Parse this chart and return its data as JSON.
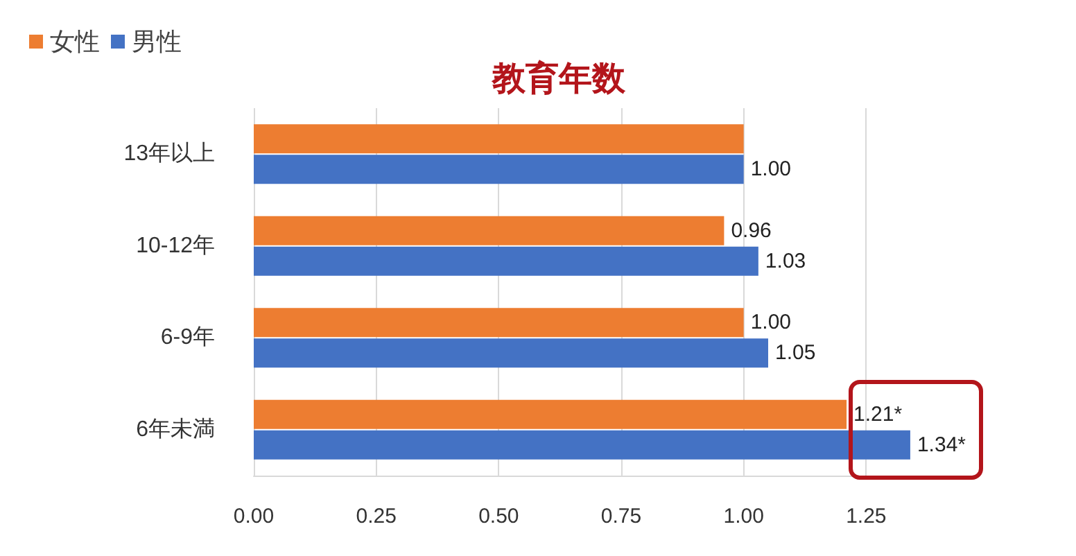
{
  "chart_data": {
    "type": "bar",
    "orientation": "horizontal",
    "title": "教育年数",
    "categories": [
      "13年以上",
      "10-12年",
      "6-9年",
      "6年未満"
    ],
    "series": [
      {
        "name": "女性",
        "color": "#ed7d31",
        "values": [
          1.0,
          0.96,
          1.0,
          1.21
        ],
        "value_labels": [
          null,
          "0.96",
          "1.00",
          "1.21*"
        ]
      },
      {
        "name": "男性",
        "color": "#4472c4",
        "values": [
          1.0,
          1.03,
          1.05,
          1.34
        ],
        "value_labels": [
          "1.00",
          "1.03",
          "1.05",
          "1.34*"
        ]
      }
    ],
    "xlim": [
      0,
      1.35
    ],
    "xticks": [
      {
        "value": 0,
        "label": "0.00"
      },
      {
        "value": 0.25,
        "label": "0.25"
      },
      {
        "value": 0.5,
        "label": "0.50"
      },
      {
        "value": 0.75,
        "label": "0.75"
      },
      {
        "value": 1,
        "label": "1.00"
      },
      {
        "value": 1.25,
        "label": "1.25"
      }
    ],
    "grid": "x",
    "legend": "top left"
  }
}
